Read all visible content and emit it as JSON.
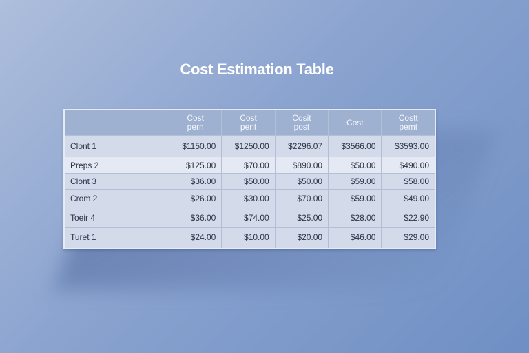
{
  "title": "Cost Estimation Table",
  "table": {
    "headers": [
      "",
      "Cost\npern",
      "Cost\npent",
      "Cosit\npost",
      "Cost",
      "Costt\npemt"
    ],
    "rows": [
      [
        "Clont 1",
        "$1150.00",
        "$1250.00",
        "$2296.07",
        "$3566.00",
        "$3593.00"
      ],
      [
        "Preps 2",
        "$125.00",
        "$70.00",
        "$890.00",
        "$50.00",
        "$490.00"
      ],
      [
        "Clont 3",
        "$36.00",
        "$50.00",
        "$50.00",
        "$59.00",
        "$58.00"
      ],
      [
        "Crom 2",
        "$26.00",
        "$30.00",
        "$70.00",
        "$59.00",
        "$49.00"
      ],
      [
        "Toeir 4",
        "$36.00",
        "$74.00",
        "$25.00",
        "$28.00",
        "$22.90"
      ],
      [
        "Turet 1",
        "$24.00",
        "$10.00",
        "$20.00",
        "$46.00",
        "$29.00"
      ]
    ]
  }
}
